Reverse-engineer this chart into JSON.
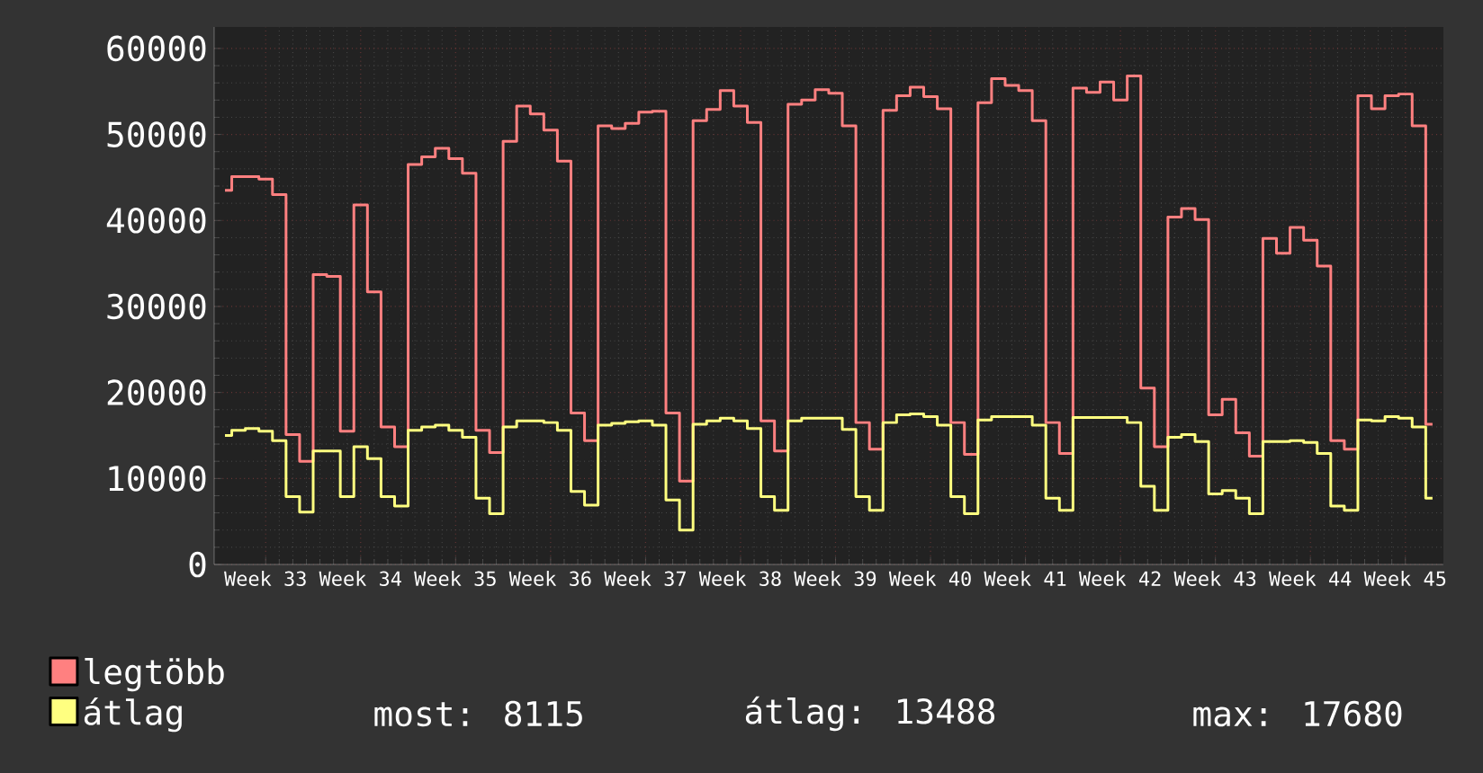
{
  "chart_data": {
    "type": "step",
    "categories": [
      null,
      null,
      null,
      "Week 33",
      null,
      null,
      null,
      null,
      null,
      null,
      "Week 34",
      null,
      null,
      null,
      null,
      null,
      null,
      "Week 35",
      null,
      null,
      null,
      null,
      null,
      null,
      "Week 36",
      null,
      null,
      null,
      null,
      null,
      null,
      "Week 37",
      null,
      null,
      null,
      null,
      null,
      null,
      "Week 38",
      null,
      null,
      null,
      null,
      null,
      null,
      "Week 39",
      null,
      null,
      null,
      null,
      null,
      null,
      "Week 40",
      null,
      null,
      null,
      null,
      null,
      null,
      "Week 41",
      null,
      null,
      null,
      null,
      null,
      null,
      "Week 42",
      null,
      null,
      null,
      null,
      null,
      null,
      "Week 43",
      null,
      null,
      null,
      null,
      null,
      null,
      "Week 44",
      null,
      null,
      null,
      null,
      null,
      null,
      "Week 45",
      null,
      null
    ],
    "series": [
      {
        "name": "legtöbb",
        "color": "#ff8080",
        "values": [
          43500,
          45100,
          45100,
          44800,
          43000,
          15100,
          12000,
          33700,
          33500,
          15500,
          41800,
          31700,
          16000,
          13700,
          46500,
          47400,
          48400,
          47200,
          45500,
          15600,
          13000,
          49200,
          53300,
          52400,
          50500,
          46900,
          17600,
          14400,
          51000,
          50700,
          51300,
          52600,
          52700,
          17600,
          9700,
          51600,
          52900,
          55100,
          53300,
          51400,
          16700,
          13200,
          53500,
          54000,
          55200,
          54800,
          51000,
          16500,
          13400,
          52800,
          54500,
          55500,
          54400,
          53000,
          16500,
          12800,
          53700,
          56500,
          55700,
          55100,
          51600,
          16500,
          12900,
          55400,
          54900,
          56100,
          54000,
          56800,
          20500,
          13700,
          40400,
          41400,
          40100,
          17400,
          19200,
          15300,
          12600,
          37900,
          36200,
          39200,
          37700,
          34700,
          14400,
          13400,
          54500,
          53000,
          54500,
          54700,
          51000,
          16300
        ]
      },
      {
        "name": "átlag",
        "color": "#ffff80",
        "values": [
          15000,
          15600,
          15800,
          15500,
          14400,
          7900,
          6100,
          13200,
          13200,
          7900,
          13700,
          12300,
          7900,
          6800,
          15600,
          16000,
          16200,
          15600,
          14800,
          7700,
          5900,
          16000,
          16700,
          16700,
          16500,
          15600,
          8500,
          6900,
          16200,
          16400,
          16600,
          16700,
          16200,
          7500,
          4000,
          16300,
          16700,
          17000,
          16700,
          15800,
          7900,
          6300,
          16700,
          17000,
          17000,
          17000,
          15700,
          7900,
          6300,
          16500,
          17400,
          17500,
          17200,
          16200,
          7900,
          5900,
          16800,
          17200,
          17200,
          17200,
          16200,
          7700,
          6300,
          17100,
          17100,
          17100,
          17100,
          16500,
          9100,
          6300,
          14800,
          15100,
          14300,
          8200,
          8600,
          7700,
          5900,
          14300,
          14300,
          14400,
          14200,
          12900,
          6800,
          6300,
          16800,
          16700,
          17200,
          17000,
          16000,
          7700
        ]
      }
    ],
    "ylim": [
      0,
      62500
    ],
    "yticks": [
      0,
      10000,
      20000,
      30000,
      40000,
      50000,
      60000
    ],
    "grid": true,
    "legend": "bottom",
    "annotations": [
      "most: 8115",
      "átlag: 13488",
      "max: 17680"
    ]
  }
}
